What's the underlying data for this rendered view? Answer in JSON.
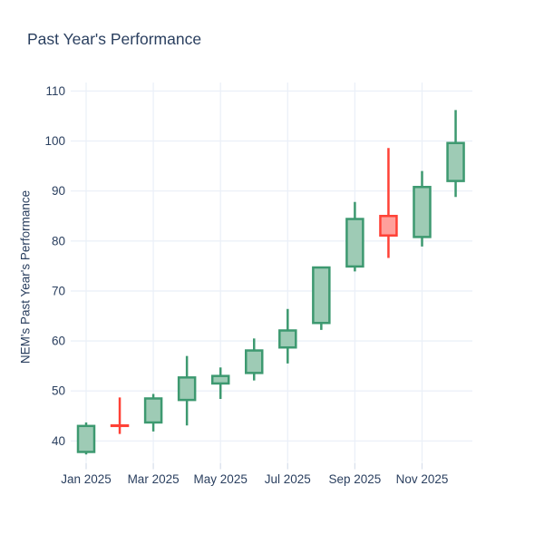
{
  "title": "Past Year's Performance",
  "y_axis_label": "NEM's Past Year's Performance",
  "chart_data": {
    "type": "candlestick",
    "x": [
      "Jan 2025",
      "Feb 2025",
      "Mar 2025",
      "Apr 2025",
      "May 2025",
      "Jun 2025",
      "Jul 2025",
      "Aug 2025",
      "Sep 2025",
      "Oct 2025",
      "Nov 2025",
      "Dec 2025"
    ],
    "open": [
      37.8,
      43.1,
      43.7,
      48.2,
      51.5,
      53.6,
      58.7,
      63.6,
      74.9,
      85.0,
      80.8,
      92.0
    ],
    "high": [
      43.7,
      48.7,
      49.4,
      57.0,
      54.7,
      60.5,
      66.4,
      74.7,
      87.8,
      98.6,
      94.0,
      106.2
    ],
    "low": [
      37.3,
      41.4,
      41.9,
      43.1,
      48.4,
      52.1,
      55.5,
      62.2,
      73.9,
      76.6,
      78.9,
      88.8
    ],
    "close": [
      43.0,
      43.0,
      48.5,
      52.7,
      53.0,
      58.1,
      62.1,
      74.7,
      84.4,
      81.1,
      90.8,
      99.6
    ],
    "title": "Past Year's Performance",
    "ylabel": "NEM's Past Year's Performance",
    "xlabel": "",
    "xticks": [
      "Jan 2025",
      "Mar 2025",
      "May 2025",
      "Jul 2025",
      "Sep 2025",
      "Nov 2025"
    ],
    "xtick_month_indices": [
      0,
      2,
      4,
      6,
      8,
      10
    ],
    "yticks": [
      40,
      50,
      60,
      70,
      80,
      90,
      100,
      110
    ],
    "ylim": [
      35.8,
      111.7
    ],
    "grid": true,
    "legend": "none",
    "colors": {
      "increasing_line": "#3D9970",
      "increasing_fill": "#9ECBB5",
      "decreasing_line": "#FF4136",
      "decreasing_fill": "#FFA09B",
      "axis_text": "#2a3f5f",
      "gridline": "#EBF0F8",
      "tick_mark": "#d9e0ec",
      "plot_background": "#ffffff"
    }
  }
}
